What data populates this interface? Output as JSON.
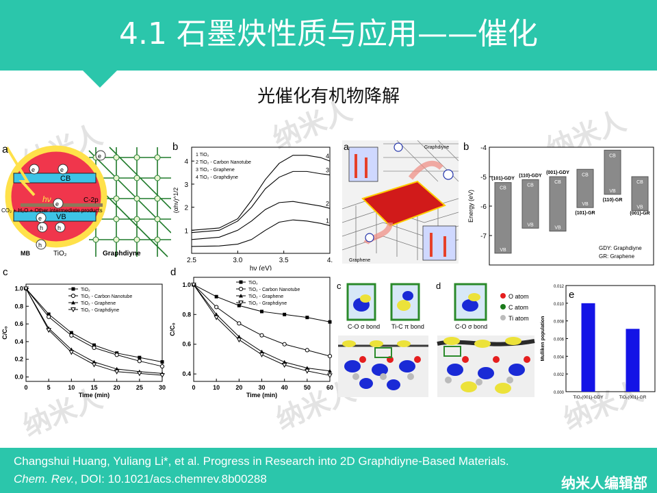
{
  "slide": {
    "title": "4.1 石墨炔性质与应用——催化",
    "subtitle": "光催化有机物降解",
    "watermark": "纳米人",
    "brand": "纳米人编辑部",
    "colors": {
      "teal": "#2bc6ab"
    }
  },
  "reference": {
    "line1": "Changshui Huang, Yuliang Li*, et al. Progress in Research into 2D Graphdiyne-Based Materials.",
    "journal": "Chem. Rev.",
    "doi": ", DOI: 10.1021/acs.chemrev.8b00288"
  },
  "panel_a_left": {
    "label": "a",
    "cb": "CB",
    "vb": "VB",
    "hv": "hν",
    "c2p": "C-2p",
    "products": "CO₂ + H₂O + Other intermediate products",
    "mb": "MB",
    "tio2": "TiO₂",
    "graphdiyne": "Graphdiyne",
    "e": "e",
    "h": "h"
  },
  "panel_a_right": {
    "label": "a",
    "graphdiyne": "Graphdiyne",
    "graphene": "Graphene"
  },
  "panel_c_right": {
    "label": "c",
    "co_bond": "C-O σ bond",
    "tic_bond": "Ti-C π bond"
  },
  "panel_d_right": {
    "label": "d",
    "co_bond": "C-O σ bond",
    "legend": [
      "O atom",
      "C atom",
      "Ti atom"
    ],
    "legend_colors": [
      "#e51e1e",
      "#1a7a1a",
      "#bbbbbb"
    ]
  },
  "chart_data": [
    {
      "id": "b-left",
      "label": "b",
      "type": "line",
      "xlabel": "hν (eV)",
      "ylabel": "(αhν)^1/2",
      "xlim": [
        2.5,
        4.0
      ],
      "ylim": [
        0,
        4.6
      ],
      "xticks": [
        "2.5",
        "3.0",
        "3.5",
        "4."
      ],
      "yticks": [
        "1",
        "2",
        "3",
        "4"
      ],
      "legend": [
        "1  TiO₂",
        "2  TiO₂ - Carbon Nanotube",
        "3  TiO₂ - Graphene",
        "4  TiO₂ - Graphdiyne"
      ],
      "series": [
        {
          "name": "1",
          "x": [
            2.5,
            2.8,
            3.0,
            3.15,
            3.3,
            3.45,
            3.6,
            3.75,
            3.9,
            4.0
          ],
          "y": [
            0.3,
            0.32,
            0.4,
            0.6,
            1.0,
            1.35,
            1.45,
            1.4,
            1.3,
            1.2
          ]
        },
        {
          "name": "2",
          "x": [
            2.5,
            2.8,
            3.0,
            3.15,
            3.3,
            3.45,
            3.6,
            3.75,
            3.9,
            4.0
          ],
          "y": [
            0.6,
            0.7,
            1.0,
            1.4,
            1.9,
            2.2,
            2.25,
            2.15,
            2.05,
            1.95
          ]
        },
        {
          "name": "3",
          "x": [
            2.5,
            2.8,
            3.0,
            3.15,
            3.3,
            3.45,
            3.6,
            3.75,
            3.9,
            4.0
          ],
          "y": [
            0.9,
            1.0,
            1.4,
            2.0,
            2.8,
            3.3,
            3.55,
            3.55,
            3.45,
            3.4
          ]
        },
        {
          "name": "4",
          "x": [
            2.5,
            2.8,
            3.0,
            3.15,
            3.3,
            3.45,
            3.6,
            3.75,
            3.9,
            4.0
          ],
          "y": [
            1.0,
            1.1,
            1.5,
            2.3,
            3.2,
            3.9,
            4.25,
            4.25,
            4.15,
            4.0
          ]
        }
      ],
      "end_labels": [
        "1",
        "2",
        "3",
        "4"
      ]
    },
    {
      "id": "b-right",
      "label": "b",
      "type": "bar",
      "ylabel": "Energy (eV)",
      "ylim": [
        -8,
        -4
      ],
      "yticks": [
        "-4",
        "-5",
        "-6",
        "-7"
      ],
      "categories": [
        "(101)-GDY",
        "(110)-GDY",
        "(001)-GDY",
        "(101)-GR",
        "(110)-GR",
        "(001)-GR"
      ],
      "cb": [
        -5.2,
        -5.1,
        -5.0,
        -4.75,
        -4.1,
        -5.0
      ],
      "vb": [
        -7.6,
        -6.75,
        -6.85,
        -6.05,
        -5.6,
        -6.15
      ],
      "band_labels": [
        "CB",
        "VB"
      ],
      "legend": [
        "GDY: Graphdiyne",
        "GR: Graphene"
      ]
    },
    {
      "id": "c-left",
      "label": "c",
      "type": "line",
      "xlabel": "Time (min)",
      "ylabel": "C/C₀",
      "xlim": [
        0,
        30
      ],
      "ylim": [
        -0.05,
        1.05
      ],
      "xticks": [
        "0",
        "5",
        "10",
        "15",
        "20",
        "25",
        "30"
      ],
      "yticks": [
        "0.0",
        "0.2",
        "0.4",
        "0.6",
        "0.8",
        "1.0"
      ],
      "x": [
        0,
        5,
        10,
        15,
        20,
        25,
        30
      ],
      "series": [
        {
          "name": "TiO₂",
          "values": [
            1.0,
            0.71,
            0.5,
            0.36,
            0.27,
            0.22,
            0.17
          ]
        },
        {
          "name": "TiO₂ - Carbon Nanotube",
          "values": [
            1.0,
            0.68,
            0.47,
            0.33,
            0.25,
            0.18,
            0.12
          ]
        },
        {
          "name": "TiO₂ - Graphene",
          "values": [
            1.0,
            0.55,
            0.31,
            0.17,
            0.09,
            0.06,
            0.04
          ]
        },
        {
          "name": "TiO₂ - Graphdiyne",
          "values": [
            1.0,
            0.53,
            0.28,
            0.14,
            0.06,
            0.04,
            0.02
          ]
        }
      ]
    },
    {
      "id": "d-left",
      "label": "d",
      "type": "line",
      "xlabel": "Time (min)",
      "ylabel": "C/C₀",
      "xlim": [
        0,
        60
      ],
      "ylim": [
        0.35,
        1.05
      ],
      "xticks": [
        "0",
        "10",
        "20",
        "30",
        "40",
        "50",
        "60"
      ],
      "yticks": [
        "0.4",
        "0.6",
        "0.8",
        "1.0"
      ],
      "x": [
        0,
        10,
        20,
        30,
        40,
        50,
        60
      ],
      "series": [
        {
          "name": "TiO₂",
          "values": [
            1.0,
            0.92,
            0.86,
            0.82,
            0.8,
            0.78,
            0.75
          ]
        },
        {
          "name": "TiO₂ - Carbon Nanotube",
          "values": [
            1.0,
            0.85,
            0.74,
            0.66,
            0.6,
            0.56,
            0.52
          ]
        },
        {
          "name": "TiO₂ - Graphene",
          "values": [
            1.0,
            0.8,
            0.65,
            0.55,
            0.48,
            0.44,
            0.42
          ]
        },
        {
          "name": "TiO₂ - Graphdiyne",
          "values": [
            1.0,
            0.78,
            0.63,
            0.53,
            0.46,
            0.42,
            0.39
          ]
        }
      ]
    },
    {
      "id": "e",
      "label": "e",
      "type": "bar",
      "ylabel": "Mulliken population",
      "ylim": [
        0,
        0.012
      ],
      "yticks": [
        "0.000",
        "0.002",
        "0.004",
        "0.006",
        "0.008",
        "0.010",
        "0.012"
      ],
      "categories": [
        "TiO₂(001)-GDY",
        "TiO₂(001)-GR"
      ],
      "values": [
        0.01,
        0.0071
      ],
      "color": "#1414e6"
    }
  ]
}
